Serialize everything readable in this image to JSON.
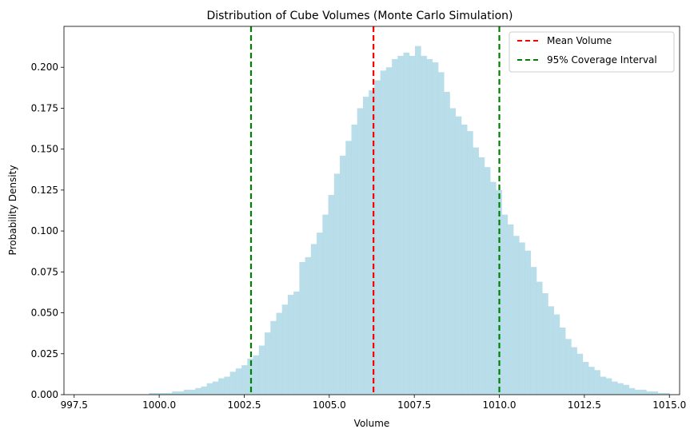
{
  "chart_data": {
    "type": "bar",
    "title": "Distribution of Cube Volumes (Monte Carlo Simulation)",
    "xlabel": "Volume",
    "ylabel": "Probability Density",
    "xlim": [
      997.2,
      1015.3
    ],
    "ylim": [
      0.0,
      0.225
    ],
    "xticks": [
      997.5,
      1000.0,
      1002.5,
      1005.0,
      1007.5,
      1010.0,
      1012.5,
      1015.0
    ],
    "xtick_labels": [
      "997.5",
      "1000.0",
      "1002.5",
      "1005.0",
      "1007.5",
      "1010.0",
      "1012.5",
      "1015.0"
    ],
    "yticks": [
      0.0,
      0.025,
      0.05,
      0.075,
      0.1,
      0.125,
      0.15,
      0.175,
      0.2
    ],
    "ytick_labels": [
      "0.000",
      "0.025",
      "0.050",
      "0.075",
      "0.100",
      "0.125",
      "0.150",
      "0.175",
      "0.200"
    ],
    "bar_color": "#add8e6",
    "histogram": {
      "bin_start": 998.0,
      "bin_width": 0.17,
      "densities": [
        0.0,
        0.0,
        0.0,
        0.0,
        0.0,
        0.0,
        0.0,
        0.0,
        0.0,
        0.0,
        0.001,
        0.001,
        0.001,
        0.001,
        0.002,
        0.002,
        0.003,
        0.003,
        0.004,
        0.005,
        0.007,
        0.008,
        0.01,
        0.011,
        0.014,
        0.016,
        0.018,
        0.022,
        0.024,
        0.03,
        0.038,
        0.045,
        0.05,
        0.055,
        0.061,
        0.063,
        0.081,
        0.084,
        0.092,
        0.099,
        0.11,
        0.122,
        0.135,
        0.146,
        0.155,
        0.165,
        0.175,
        0.182,
        0.186,
        0.192,
        0.198,
        0.2,
        0.205,
        0.207,
        0.209,
        0.207,
        0.213,
        0.207,
        0.205,
        0.203,
        0.197,
        0.185,
        0.175,
        0.17,
        0.165,
        0.161,
        0.151,
        0.145,
        0.139,
        0.13,
        0.125,
        0.11,
        0.104,
        0.097,
        0.093,
        0.088,
        0.078,
        0.069,
        0.062,
        0.054,
        0.049,
        0.041,
        0.034,
        0.029,
        0.025,
        0.02,
        0.017,
        0.015,
        0.011,
        0.01,
        0.008,
        0.007,
        0.006,
        0.004,
        0.003,
        0.003,
        0.002,
        0.002,
        0.001,
        0.001,
        0.0,
        0.0,
        0.0,
        0.0,
        0.0,
        0.0
      ]
    },
    "lines": [
      {
        "name": "Mean Volume",
        "x": 1006.3,
        "color": "#ff0000"
      },
      {
        "name": "95% Coverage Interval",
        "x": 1002.7,
        "color": "#008000"
      },
      {
        "name": "95% Coverage Interval",
        "x": 1010.0,
        "color": "#008000"
      }
    ],
    "legend": {
      "position": "top-right",
      "entries": [
        {
          "label": "Mean Volume",
          "color": "#ff0000"
        },
        {
          "label": "95% Coverage Interval",
          "color": "#008000"
        }
      ]
    }
  }
}
